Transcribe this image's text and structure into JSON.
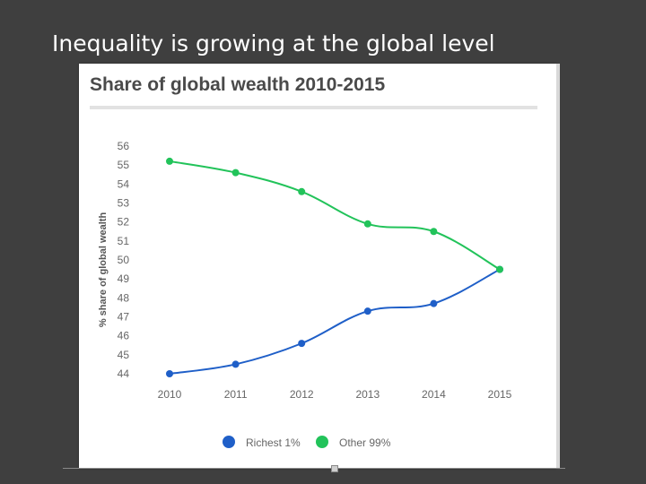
{
  "slide": {
    "title": "Inequality is growing at the global level"
  },
  "colors": {
    "richest": "#1f5fc8",
    "other": "#22c35a",
    "text": "#555555",
    "title": "#4a4a4a"
  },
  "chart_data": {
    "type": "line",
    "title": "Share of global wealth 2010-2015",
    "xlabel": "",
    "ylabel": "% share of global wealth",
    "categories": [
      "2010",
      "2011",
      "2012",
      "2013",
      "2014",
      "2015"
    ],
    "yticks": [
      "56",
      "55",
      "54",
      "53",
      "52",
      "51",
      "50",
      "49",
      "48",
      "47",
      "46",
      "45",
      "44"
    ],
    "ylim": [
      44,
      56
    ],
    "series": [
      {
        "name": "Richest 1%",
        "values": [
          44.0,
          44.5,
          45.6,
          47.3,
          47.7,
          49.5
        ]
      },
      {
        "name": "Other 99%",
        "values": [
          55.2,
          54.6,
          53.6,
          51.9,
          51.5,
          49.5
        ]
      }
    ],
    "legend": [
      "Richest 1%",
      "Other 99%"
    ],
    "legend_position": "bottom"
  }
}
